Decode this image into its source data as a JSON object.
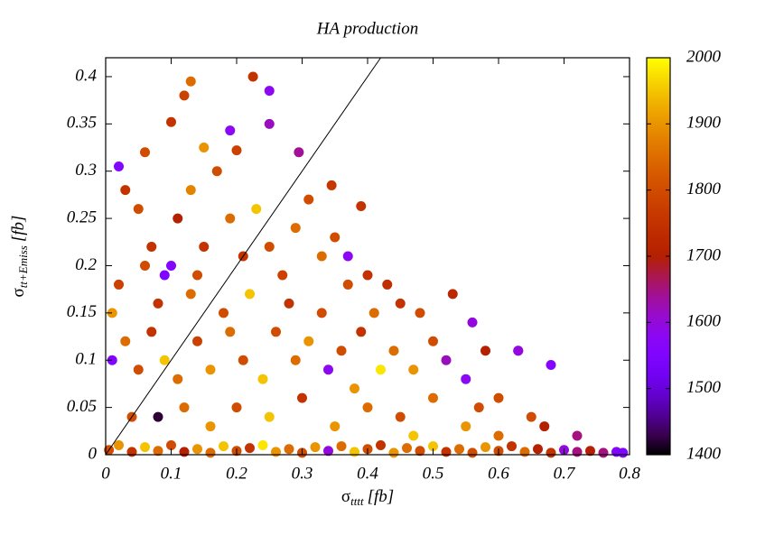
{
  "chart_data": {
    "type": "scatter",
    "title": "HA production",
    "x_label": {
      "symbol": "σ",
      "subscript": "tttt",
      "unit": "[fb]"
    },
    "y_label": {
      "symbol": "σ",
      "subscript": "tt+Emiss",
      "unit": "[fb]"
    },
    "xlim": [
      0,
      0.8
    ],
    "xticks": [
      0,
      0.1,
      0.2,
      0.3,
      0.4,
      0.5,
      0.6,
      0.7,
      0.8
    ],
    "ylim": [
      0,
      0.42
    ],
    "yticks": [
      0,
      0.05,
      0.1,
      0.15,
      0.2,
      0.25,
      0.3,
      0.35,
      0.4
    ],
    "identity_line": true,
    "colormap": "gnuplot",
    "zlim": [
      1400,
      2000
    ],
    "zticks": [
      1400,
      1500,
      1600,
      1700,
      1800,
      1900,
      2000
    ],
    "points": [
      [
        0.005,
        0.005,
        1800
      ],
      [
        0.02,
        0.01,
        1900
      ],
      [
        0.04,
        0.003,
        1750
      ],
      [
        0.06,
        0.008,
        1950
      ],
      [
        0.08,
        0.004,
        1850
      ],
      [
        0.1,
        0.01,
        1800
      ],
      [
        0.12,
        0.003,
        1700
      ],
      [
        0.14,
        0.006,
        1900
      ],
      [
        0.16,
        0.002,
        1850
      ],
      [
        0.18,
        0.009,
        1950
      ],
      [
        0.2,
        0.004,
        1800
      ],
      [
        0.22,
        0.007,
        1750
      ],
      [
        0.24,
        0.01,
        1980
      ],
      [
        0.26,
        0.003,
        1900
      ],
      [
        0.28,
        0.006,
        1850
      ],
      [
        0.3,
        0.002,
        1800
      ],
      [
        0.32,
        0.008,
        1900
      ],
      [
        0.34,
        0.004,
        1600
      ],
      [
        0.36,
        0.009,
        1850
      ],
      [
        0.38,
        0.003,
        1950
      ],
      [
        0.4,
        0.006,
        1800
      ],
      [
        0.42,
        0.01,
        1750
      ],
      [
        0.44,
        0.002,
        1900
      ],
      [
        0.46,
        0.007,
        1850
      ],
      [
        0.48,
        0.004,
        1800
      ],
      [
        0.5,
        0.009,
        1950
      ],
      [
        0.52,
        0.003,
        1750
      ],
      [
        0.54,
        0.006,
        1850
      ],
      [
        0.56,
        0.002,
        1800
      ],
      [
        0.58,
        0.008,
        1900
      ],
      [
        0.6,
        0.004,
        1800
      ],
      [
        0.62,
        0.009,
        1750
      ],
      [
        0.64,
        0.003,
        1850
      ],
      [
        0.66,
        0.006,
        1700
      ],
      [
        0.68,
        0.002,
        1750
      ],
      [
        0.7,
        0.005,
        1600
      ],
      [
        0.72,
        0.003,
        1650
      ],
      [
        0.74,
        0.004,
        1700
      ],
      [
        0.76,
        0.002,
        1650
      ],
      [
        0.78,
        0.003,
        1560
      ],
      [
        0.79,
        0.002,
        1550
      ],
      [
        0.01,
        0.1,
        1550
      ],
      [
        0.02,
        0.18,
        1780
      ],
      [
        0.03,
        0.28,
        1750
      ],
      [
        0.05,
        0.26,
        1800
      ],
      [
        0.07,
        0.22,
        1750
      ],
      [
        0.09,
        0.19,
        1550
      ],
      [
        0.11,
        0.25,
        1700
      ],
      [
        0.13,
        0.28,
        1880
      ],
      [
        0.15,
        0.22,
        1750
      ],
      [
        0.17,
        0.3,
        1800
      ],
      [
        0.19,
        0.25,
        1850
      ],
      [
        0.21,
        0.21,
        1750
      ],
      [
        0.23,
        0.26,
        1950
      ],
      [
        0.25,
        0.22,
        1800
      ],
      [
        0.27,
        0.19,
        1780
      ],
      [
        0.29,
        0.24,
        1850
      ],
      [
        0.31,
        0.27,
        1800
      ],
      [
        0.33,
        0.21,
        1850
      ],
      [
        0.35,
        0.23,
        1800
      ],
      [
        0.37,
        0.21,
        1580
      ],
      [
        0.37,
        0.18,
        1800
      ],
      [
        0.4,
        0.19,
        1750
      ],
      [
        0.43,
        0.18,
        1740
      ],
      [
        0.45,
        0.16,
        1750
      ],
      [
        0.48,
        0.15,
        1800
      ],
      [
        0.53,
        0.17,
        1720
      ],
      [
        0.56,
        0.14,
        1600
      ],
      [
        0.58,
        0.11,
        1700
      ],
      [
        0.63,
        0.11,
        1580
      ],
      [
        0.68,
        0.095,
        1560
      ],
      [
        0.52,
        0.1,
        1620
      ],
      [
        0.55,
        0.08,
        1580
      ],
      [
        0.6,
        0.06,
        1800
      ],
      [
        0.65,
        0.04,
        1800
      ],
      [
        0.67,
        0.03,
        1700
      ],
      [
        0.72,
        0.02,
        1650
      ],
      [
        0.5,
        0.12,
        1800
      ],
      [
        0.47,
        0.09,
        1900
      ],
      [
        0.44,
        0.11,
        1850
      ],
      [
        0.42,
        0.09,
        1980
      ],
      [
        0.39,
        0.13,
        1750
      ],
      [
        0.36,
        0.11,
        1800
      ],
      [
        0.34,
        0.09,
        1580
      ],
      [
        0.31,
        0.12,
        1900
      ],
      [
        0.29,
        0.1,
        1850
      ],
      [
        0.26,
        0.13,
        1800
      ],
      [
        0.24,
        0.08,
        1950
      ],
      [
        0.21,
        0.1,
        1800
      ],
      [
        0.19,
        0.13,
        1850
      ],
      [
        0.16,
        0.09,
        1900
      ],
      [
        0.14,
        0.12,
        1780
      ],
      [
        0.11,
        0.08,
        1850
      ],
      [
        0.09,
        0.1,
        1950
      ],
      [
        0.07,
        0.13,
        1750
      ],
      [
        0.05,
        0.09,
        1800
      ],
      [
        0.03,
        0.12,
        1850
      ],
      [
        0.01,
        0.15,
        1900
      ],
      [
        0.04,
        0.04,
        1800
      ],
      [
        0.08,
        0.04,
        1420
      ],
      [
        0.12,
        0.05,
        1850
      ],
      [
        0.16,
        0.03,
        1900
      ],
      [
        0.2,
        0.05,
        1800
      ],
      [
        0.25,
        0.04,
        1950
      ],
      [
        0.3,
        0.06,
        1750
      ],
      [
        0.35,
        0.03,
        1900
      ],
      [
        0.4,
        0.05,
        1850
      ],
      [
        0.45,
        0.04,
        1800
      ],
      [
        0.5,
        0.06,
        1850
      ],
      [
        0.55,
        0.03,
        1900
      ],
      [
        0.33,
        0.15,
        1800
      ],
      [
        0.28,
        0.16,
        1750
      ],
      [
        0.22,
        0.17,
        1950
      ],
      [
        0.18,
        0.15,
        1800
      ],
      [
        0.13,
        0.17,
        1850
      ],
      [
        0.08,
        0.16,
        1750
      ],
      [
        0.06,
        0.2,
        1800
      ],
      [
        0.1,
        0.2,
        1560
      ],
      [
        0.14,
        0.19,
        1800
      ],
      [
        0.41,
        0.15,
        1850
      ],
      [
        0.38,
        0.07,
        1900
      ],
      [
        0.47,
        0.02,
        1950
      ],
      [
        0.6,
        0.02,
        1850
      ],
      [
        0.57,
        0.05,
        1800
      ],
      [
        0.225,
        0.4,
        1750
      ],
      [
        0.25,
        0.385,
        1580
      ],
      [
        0.13,
        0.395,
        1850
      ],
      [
        0.12,
        0.38,
        1780
      ],
      [
        0.1,
        0.352,
        1750
      ],
      [
        0.06,
        0.32,
        1800
      ],
      [
        0.15,
        0.325,
        1900
      ],
      [
        0.25,
        0.35,
        1620
      ],
      [
        0.19,
        0.343,
        1580
      ],
      [
        0.295,
        0.32,
        1640
      ],
      [
        0.2,
        0.322,
        1780
      ],
      [
        0.02,
        0.305,
        1560
      ],
      [
        0.39,
        0.263,
        1750
      ],
      [
        0.345,
        0.285,
        1760
      ],
      [
        0.63,
        0.11,
        1600
      ]
    ]
  }
}
